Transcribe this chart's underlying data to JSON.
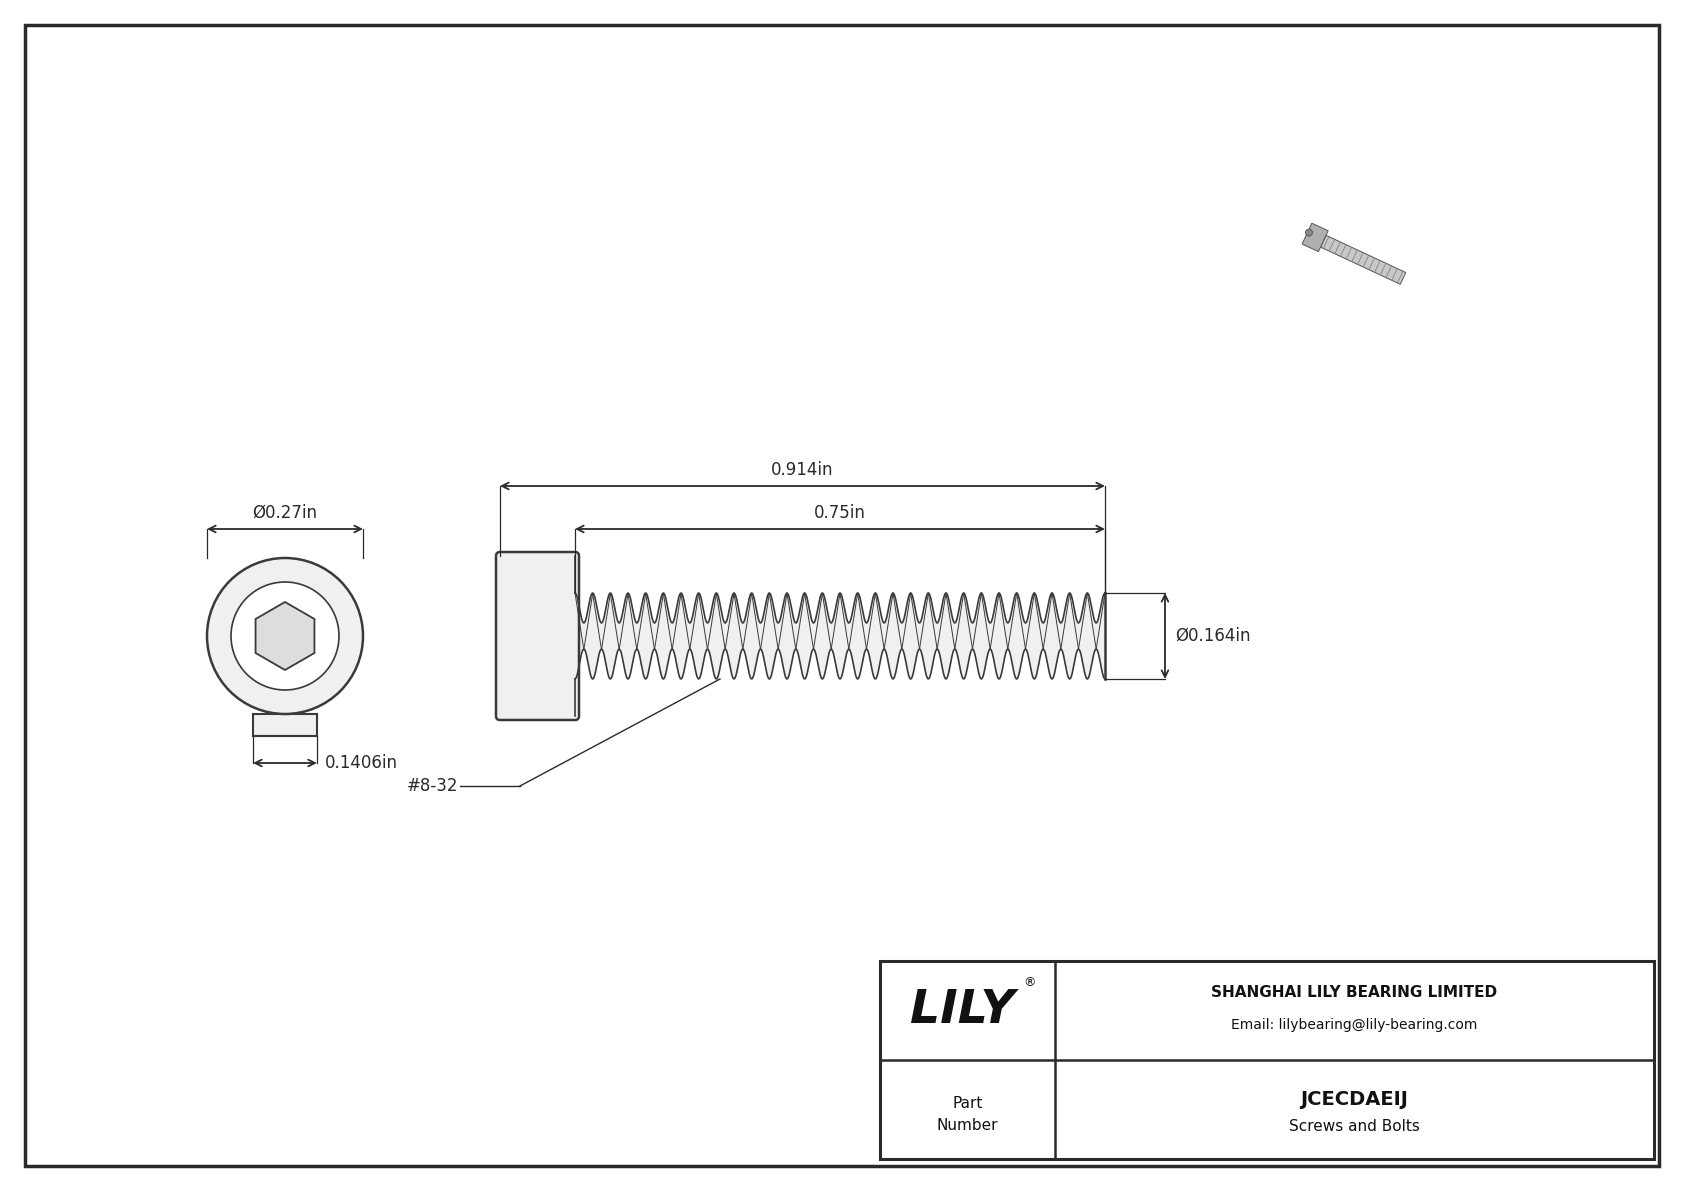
{
  "bg_color": "#ffffff",
  "line_color": "#3a3a3a",
  "border_color": "#2a2a2a",
  "title_company": "SHANGHAI LILY BEARING LIMITED",
  "title_email": "Email: lilybearing@lily-bearing.com",
  "part_number": "JCECDAEIJ",
  "part_category": "Screws and Bolts",
  "part_label_line1": "Part",
  "part_label_line2": "Number",
  "dim_total_length": "0.914in",
  "dim_thread_length": "0.75in",
  "dim_shank_dia": "Ø0.164in",
  "dim_head_dia": "Ø0.27in",
  "dim_head_height": "0.1406in",
  "thread_label": "#8-32",
  "dim_line_color": "#2a2a2a",
  "draw_color": "#3a3a3a",
  "fill_color": "#f0f0f0"
}
